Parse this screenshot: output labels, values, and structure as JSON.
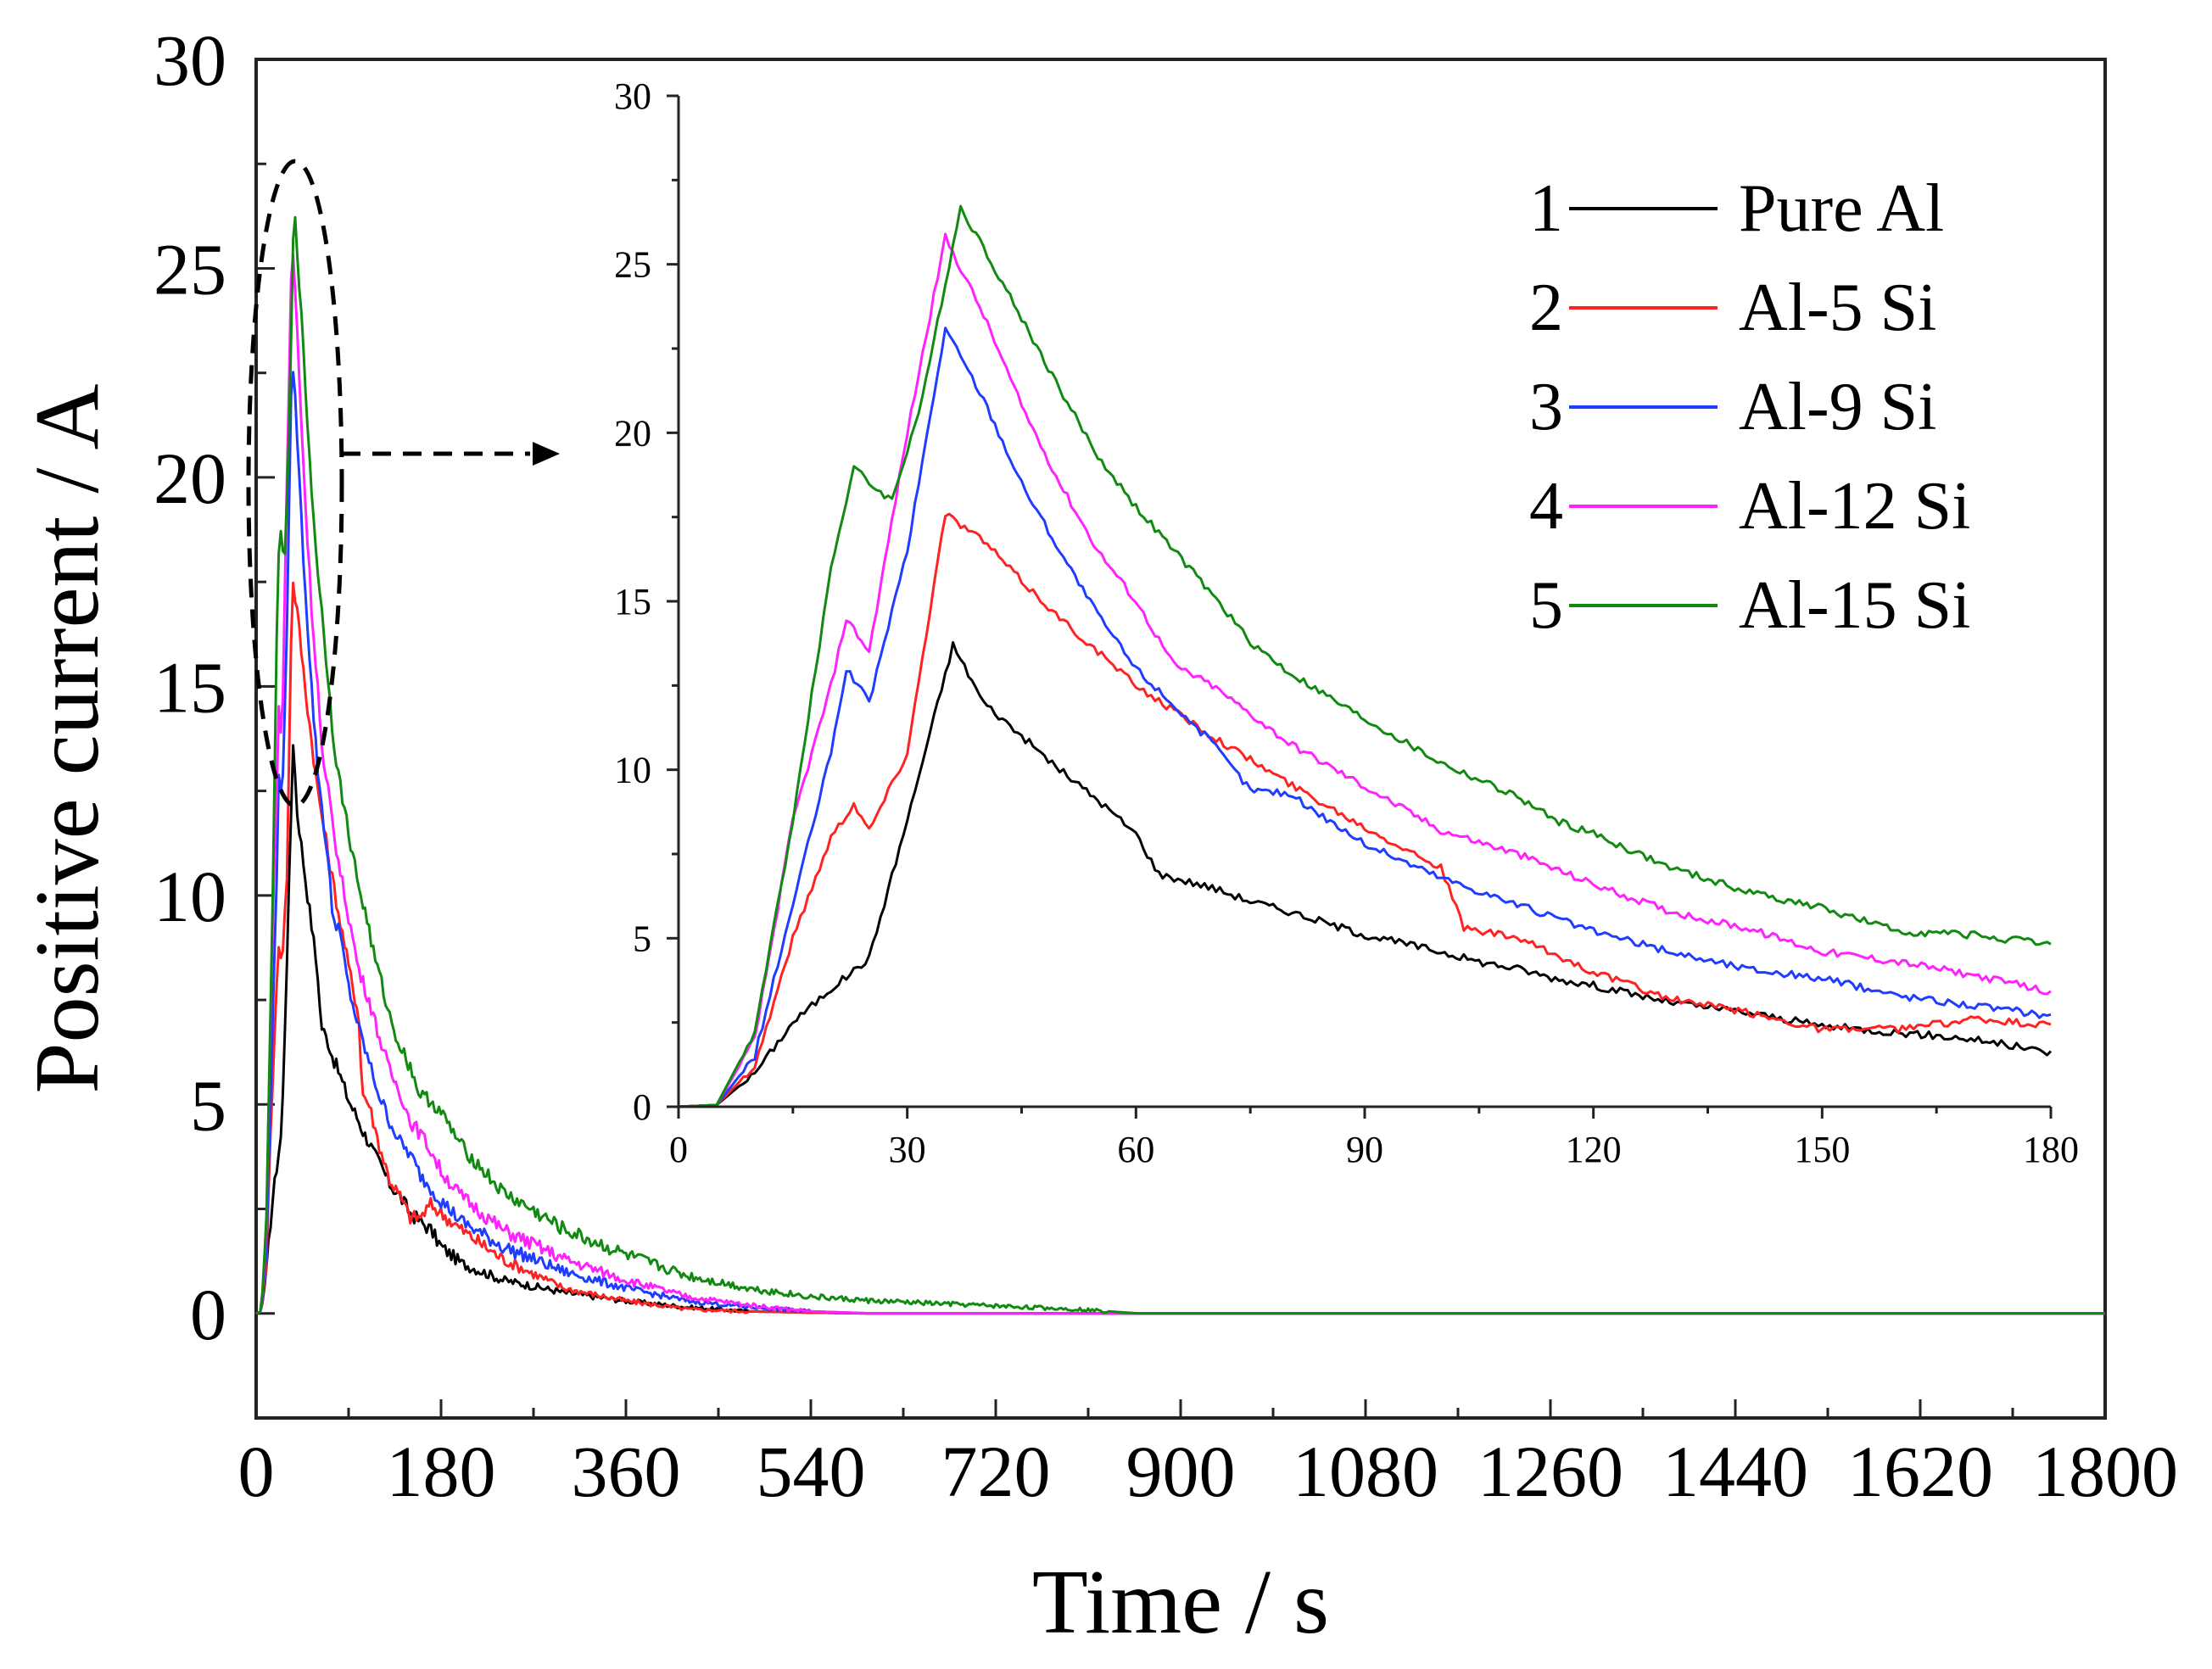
{
  "chart_data": [
    {
      "id": "main",
      "type": "line",
      "xlabel": "Time / s",
      "ylabel": "Positive current / A",
      "xlim": [
        0,
        1800
      ],
      "ylim": [
        -2.5,
        30
      ],
      "xticks": [
        0,
        180,
        360,
        540,
        720,
        900,
        1080,
        1260,
        1440,
        1620,
        1800
      ],
      "yticks": [
        0,
        5,
        10,
        15,
        20,
        25,
        30
      ],
      "series": [
        {
          "name": "Pure Al",
          "color": "#000000",
          "x": [
            0,
            5,
            10,
            15,
            20,
            25,
            30,
            36,
            40,
            45,
            50,
            55,
            60,
            63,
            70,
            75,
            80,
            90,
            100,
            105,
            110,
            115,
            120,
            130,
            140,
            150,
            160,
            170,
            180,
            200,
            240,
            300,
            360,
            420,
            480,
            540,
            600,
            1800
          ],
          "y": [
            0,
            0.05,
            1.0,
            2.5,
            3.5,
            4.4,
            8.5,
            13.7,
            12.0,
            11.0,
            10.0,
            9.1,
            8.1,
            6.9,
            6.5,
            6.1,
            5.8,
            5.1,
            4.6,
            4.3,
            4.1,
            3.8,
            3.6,
            3.1,
            2.8,
            2.4,
            2.2,
            2.0,
            1.6,
            1.2,
            0.8,
            0.5,
            0.3,
            0.15,
            0.05,
            0.02,
            0,
            0
          ]
        },
        {
          "name": "Al-5 Si",
          "color": "#ff2222",
          "x": [
            0,
            5,
            10,
            15,
            20,
            23,
            25,
            30,
            35,
            40,
            45,
            50,
            55,
            60,
            70,
            80,
            90,
            100,
            103,
            110,
            120,
            130,
            140,
            150,
            160,
            170,
            180,
            200,
            240,
            300,
            360,
            420,
            480,
            540,
            600,
            1800
          ],
          "y": [
            0,
            0.05,
            1.2,
            5.0,
            8.0,
            9.0,
            8.2,
            10.5,
            17.6,
            16.8,
            15.6,
            14.5,
            13.5,
            12.5,
            11.0,
            9.6,
            8.3,
            7.1,
            5.3,
            5.0,
            4.0,
            3.2,
            2.8,
            2.3,
            2.3,
            2.6,
            2.4,
            2.0,
            1.3,
            0.6,
            0.3,
            0.1,
            0.05,
            0.02,
            0,
            0
          ]
        },
        {
          "name": "Al-9 Si",
          "color": "#1f3cff",
          "x": [
            0,
            5,
            10,
            15,
            20,
            22,
            25,
            30,
            35,
            40,
            45,
            50,
            55,
            60,
            70,
            75,
            80,
            90,
            100,
            110,
            120,
            130,
            140,
            150,
            160,
            170,
            180,
            200,
            240,
            300,
            360,
            420,
            480,
            540,
            600,
            1800
          ],
          "y": [
            0,
            0.05,
            1.5,
            6.0,
            10.5,
            13.0,
            12.0,
            16.5,
            23.1,
            21.0,
            18.5,
            16.5,
            14.6,
            13.0,
            10.8,
            9.4,
            9.3,
            7.8,
            6.8,
            6.0,
            5.2,
            4.6,
            4.1,
            3.8,
            3.3,
            3.0,
            2.7,
            2.2,
            1.6,
            1.0,
            0.6,
            0.3,
            0.15,
            0.05,
            0,
            0
          ]
        },
        {
          "name": "Al-12 Si",
          "color": "#ff22ff",
          "x": [
            0,
            5,
            10,
            15,
            20,
            22,
            25,
            30,
            35,
            40,
            45,
            50,
            55,
            60,
            65,
            70,
            80,
            90,
            100,
            110,
            120,
            130,
            140,
            150,
            160,
            170,
            180,
            200,
            240,
            300,
            360,
            420,
            480,
            540,
            600,
            1800
          ],
          "y": [
            0,
            0.05,
            2.0,
            8.5,
            12.5,
            14.5,
            13.5,
            20.0,
            25.8,
            23.5,
            20.8,
            18.5,
            16.5,
            15.0,
            13.1,
            12.5,
            10.8,
            9.5,
            8.2,
            7.5,
            6.6,
            5.8,
            5.3,
            4.6,
            4.3,
            3.9,
            3.4,
            2.8,
            2.0,
            1.3,
            0.8,
            0.4,
            0.2,
            0.05,
            0,
            0
          ]
        },
        {
          "name": "Al-15 Si",
          "color": "#128a12",
          "x": [
            0,
            5,
            10,
            15,
            20,
            23,
            25,
            28,
            32,
            37,
            40,
            45,
            50,
            55,
            60,
            70,
            75,
            80,
            90,
            100,
            110,
            115,
            120,
            130,
            140,
            150,
            160,
            170,
            180,
            200,
            240,
            300,
            360,
            420,
            480,
            540,
            600,
            700,
            800,
            860,
            1800
          ],
          "y": [
            0,
            0.05,
            2.2,
            8.5,
            16.0,
            19.0,
            18.5,
            18.0,
            21.0,
            26.7,
            25.5,
            23.4,
            21.3,
            19.3,
            17.8,
            15.2,
            13.8,
            12.9,
            11.5,
            10.2,
            9.2,
            8.5,
            8.1,
            7.1,
            6.4,
            5.9,
            5.2,
            5.1,
            4.8,
            4.0,
            2.9,
            2.0,
            1.4,
            0.9,
            0.6,
            0.4,
            0.3,
            0.2,
            0.1,
            0,
            0
          ]
        }
      ]
    },
    {
      "id": "inset",
      "type": "line",
      "xlabel": "",
      "ylabel": "",
      "xlim": [
        0,
        180
      ],
      "ylim": [
        0,
        30
      ],
      "xticks": [
        0,
        30,
        60,
        90,
        120,
        150,
        180
      ],
      "yticks": [
        0,
        5,
        10,
        15,
        20,
        25,
        30
      ],
      "series_source": "main",
      "legend": {
        "placement": "top-right",
        "entries": [
          {
            "number": "1",
            "label": "Pure Al",
            "color": "#000000"
          },
          {
            "number": "2",
            "label": "Al-5 Si",
            "color": "#ff2222"
          },
          {
            "number": "3",
            "label": "Al-9 Si",
            "color": "#1f3cff"
          },
          {
            "number": "4",
            "label": "Al-12 Si",
            "color": "#ff22ff"
          },
          {
            "number": "5",
            "label": "Al-15 Si",
            "color": "#128a12"
          }
        ]
      }
    }
  ]
}
